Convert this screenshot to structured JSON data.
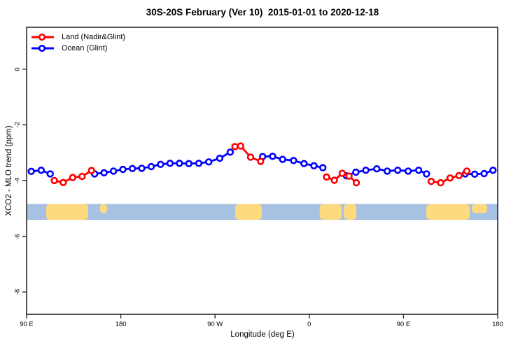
{
  "title": "30S-20S February (Ver 10)  2015-01-01 to 2020-12-18",
  "legend": {
    "items": [
      {
        "label": "Land (Nadir&Glint)",
        "color": "#ff0000"
      },
      {
        "label": "Ocean (Glint)",
        "color": "#0000ff"
      }
    ]
  },
  "axes": {
    "x": {
      "label": "Longitude (deg E)",
      "range": [
        90,
        540
      ],
      "ticks": [
        {
          "v": 90,
          "label": "90 E"
        },
        {
          "v": 180,
          "label": "180"
        },
        {
          "v": 270,
          "label": "90 W"
        },
        {
          "v": 360,
          "label": "0"
        },
        {
          "v": 450,
          "label": "90 E"
        },
        {
          "v": 540,
          "label": "180"
        }
      ]
    },
    "y": {
      "label": "XCO2 - MLO trend (ppm)",
      "range": [
        1.5,
        -8.8
      ],
      "ticks": [
        {
          "v": 0,
          "label": "0"
        },
        {
          "v": -2,
          "label": "-2"
        },
        {
          "v": -4,
          "label": "-4"
        },
        {
          "v": -6,
          "label": "-6"
        },
        {
          "v": -8,
          "label": "-8"
        }
      ]
    }
  },
  "chart_data": {
    "type": "line",
    "title": "30S-20S February (Ver 10)  2015-01-01 to 2020-12-18",
    "xlabel": "Longitude (deg E)",
    "ylabel": "XCO2 - MLO trend (ppm)",
    "xlim": [
      90,
      540
    ],
    "ylim": [
      -8.8,
      1.5
    ],
    "grid": false,
    "legend_position": "top-left",
    "marker_style": "open-circle",
    "series": [
      {
        "name": "Ocean (Glint)",
        "color": "#0000ff",
        "segments": [
          [
            [
              94.5,
              -3.67
            ],
            [
              104,
              -3.63
            ],
            [
              112.5,
              -3.76
            ]
          ],
          [
            [
              155,
              -3.76
            ],
            [
              164,
              -3.72
            ],
            [
              173,
              -3.66
            ],
            [
              182,
              -3.6
            ],
            [
              191,
              -3.57
            ],
            [
              200,
              -3.56
            ],
            [
              209,
              -3.5
            ],
            [
              218,
              -3.42
            ],
            [
              227,
              -3.38
            ],
            [
              236,
              -3.38
            ],
            [
              245,
              -3.39
            ],
            [
              254.5,
              -3.38
            ],
            [
              264,
              -3.33
            ],
            [
              274.5,
              -3.2
            ],
            [
              284.5,
              -2.98
            ]
          ],
          [
            [
              315.5,
              -3.14
            ],
            [
              325,
              -3.13
            ],
            [
              334.5,
              -3.24
            ],
            [
              345,
              -3.28
            ],
            [
              355,
              -3.39
            ],
            [
              364.5,
              -3.47
            ],
            [
              373,
              -3.54
            ]
          ],
          [
            [
              395.5,
              -3.83
            ],
            [
              404.5,
              -3.7
            ],
            [
              414,
              -3.63
            ],
            [
              424.5,
              -3.58
            ],
            [
              434.5,
              -3.66
            ],
            [
              444.5,
              -3.63
            ],
            [
              454.5,
              -3.66
            ],
            [
              464.5,
              -3.63
            ],
            [
              472,
              -3.76
            ]
          ],
          [
            [
              509,
              -3.76
            ],
            [
              518,
              -3.77
            ],
            [
              527,
              -3.75
            ],
            [
              535.5,
              -3.63
            ]
          ]
        ]
      },
      {
        "name": "Land (Nadir&Glint)",
        "color": "#ff0000",
        "segments": [
          [
            [
              116.5,
              -4.0
            ],
            [
              125,
              -4.07
            ],
            [
              134,
              -3.89
            ],
            [
              143,
              -3.85
            ],
            [
              152,
              -3.64
            ]
          ],
          [
            [
              289,
              -2.78
            ],
            [
              294.5,
              -2.76
            ],
            [
              304,
              -3.16
            ],
            [
              313.5,
              -3.31
            ]
          ],
          [
            [
              376.5,
              -3.87
            ],
            [
              384,
              -3.99
            ],
            [
              391.5,
              -3.74
            ],
            [
              398,
              -3.84
            ],
            [
              405,
              -4.08
            ]
          ],
          [
            [
              476.5,
              -4.03
            ],
            [
              485.5,
              -4.08
            ],
            [
              494.5,
              -3.91
            ],
            [
              503,
              -3.82
            ],
            [
              510.5,
              -3.66
            ]
          ]
        ]
      }
    ],
    "land_ocean_band": {
      "description": "longitude strip showing ocean (blue) and land (yellow) coverage",
      "y_top": -4.84,
      "y_bottom": -5.41,
      "ocean_color": "#a6c1e1",
      "land_color": "#fdd97f",
      "land_patches": [
        {
          "from": 108.7,
          "to": 148.8,
          "part": "full"
        },
        {
          "from": 160.0,
          "to": 167.0,
          "part": "top"
        },
        {
          "from": 289.3,
          "to": 314.7,
          "part": "full"
        },
        {
          "from": 370.0,
          "to": 391.0,
          "part": "full"
        },
        {
          "from": 393.0,
          "to": 405.0,
          "part": "full"
        },
        {
          "from": 471.8,
          "to": 513.3,
          "part": "full"
        },
        {
          "from": 515.3,
          "to": 530.0,
          "part": "top"
        }
      ]
    }
  },
  "colors": {
    "land_series": "#ff0000",
    "ocean_series": "#0000ff",
    "band_ocean": "#a6c1e1",
    "band_land": "#fdd97f",
    "frame": "#2b2b2b"
  }
}
